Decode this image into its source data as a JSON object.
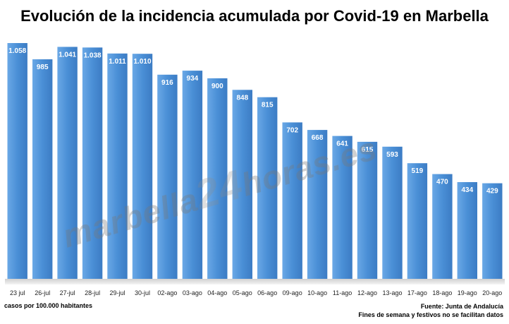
{
  "chart_data": {
    "type": "bar",
    "title": "Evolución de la incidencia acumulada por Covid-19 en Marbella",
    "categories": [
      "23 jul",
      "26-jul",
      "27-jul",
      "28-jul",
      "29-jul",
      "30-jul",
      "02-ago",
      "03-ago",
      "04-ago",
      "05-ago",
      "06-ago",
      "09-ago",
      "10-ago",
      "11-ago",
      "12-ago",
      "13-ago",
      "17-ago",
      "18-ago",
      "19-ago",
      "20-ago"
    ],
    "values": [
      1058,
      985,
      1041,
      1038,
      1011,
      1010,
      916,
      934,
      900,
      848,
      815,
      702,
      668,
      641,
      615,
      593,
      519,
      470,
      434,
      429
    ],
    "value_labels": [
      "1.058",
      "985",
      "1.041",
      "1.038",
      "1.011",
      "1.010",
      "916",
      "934",
      "900",
      "848",
      "815",
      "702",
      "668",
      "641",
      "615",
      "593",
      "519",
      "470",
      "434",
      "429"
    ],
    "ylim": [
      0,
      1100
    ],
    "grid": false,
    "bar_color": "#4a8fd6",
    "xlabel": "",
    "ylabel": ""
  },
  "footer": {
    "units": "casos por 100.000 habitantes",
    "source": "Fuente: Junta de Andalucía",
    "note": "Fines de semana y festivos no se facilitan datos"
  },
  "watermark": {
    "prefix": "marbella",
    "number": "24",
    "suffix": "horas.es"
  }
}
